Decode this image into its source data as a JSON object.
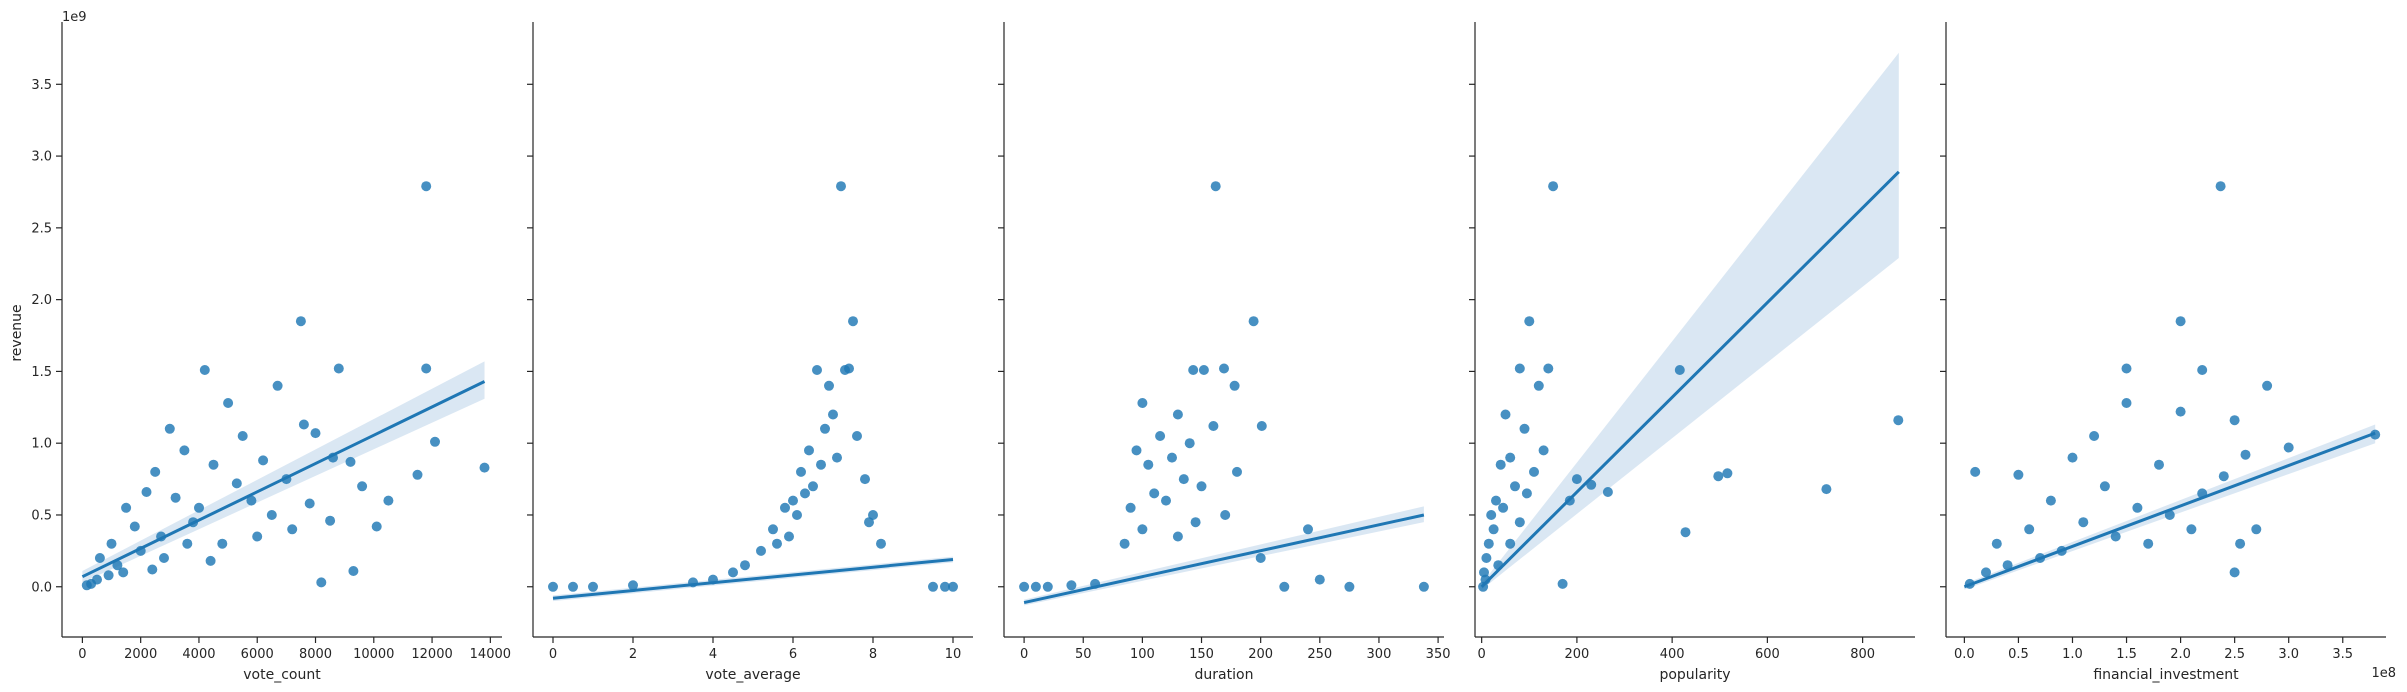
{
  "figure": {
    "ylabel": "revenue",
    "y_offset_label": "1e9",
    "y_scale": 1000000000.0,
    "ylim": [
      -0.35,
      3.92
    ],
    "yticks": [
      0.0,
      0.5,
      1.0,
      1.5,
      2.0,
      2.5,
      3.0,
      3.5
    ],
    "ytick_labels": [
      "0.0",
      "0.5",
      "1.0",
      "1.5",
      "2.0",
      "2.5",
      "3.0",
      "3.5"
    ],
    "colors": {
      "points": "#1f77b4",
      "line": "#1f77b4",
      "band": "#aec9e4",
      "axis": "#262626"
    }
  },
  "chart_data": [
    {
      "type": "scatter",
      "xlabel": "vote_count",
      "xlim": [
        -700,
        14400
      ],
      "xticks": [
        0,
        2000,
        4000,
        6000,
        8000,
        10000,
        12000,
        14000
      ],
      "xtick_labels": [
        "0",
        "2000",
        "4000",
        "6000",
        "8000",
        "10000",
        "12000",
        "14000"
      ],
      "x_offset_label": "",
      "regression": {
        "x": [
          0,
          13800
        ],
        "y": [
          0.07,
          1.43
        ],
        "ci_low": [
          0.03,
          1.31
        ],
        "ci_high": [
          0.11,
          1.57
        ]
      },
      "points": [
        [
          11800,
          2.79
        ],
        [
          7500,
          1.85
        ],
        [
          4200,
          1.51
        ],
        [
          8800,
          1.52
        ],
        [
          11800,
          1.52
        ],
        [
          6700,
          1.4
        ],
        [
          13800,
          0.83
        ],
        [
          12100,
          1.01
        ],
        [
          9600,
          0.7
        ],
        [
          11500,
          0.78
        ],
        [
          8200,
          0.03
        ],
        [
          9300,
          0.11
        ],
        [
          8500,
          0.46
        ],
        [
          10100,
          0.42
        ],
        [
          7600,
          1.13
        ],
        [
          8000,
          1.07
        ],
        [
          5000,
          1.28
        ],
        [
          5500,
          1.05
        ],
        [
          6200,
          0.88
        ],
        [
          3000,
          1.1
        ],
        [
          3500,
          0.95
        ],
        [
          4500,
          0.85
        ],
        [
          7000,
          0.75
        ],
        [
          2500,
          0.8
        ],
        [
          5800,
          0.6
        ],
        [
          6500,
          0.5
        ],
        [
          3800,
          0.45
        ],
        [
          7200,
          0.4
        ],
        [
          4800,
          0.3
        ],
        [
          8600,
          0.9
        ],
        [
          9200,
          0.87
        ],
        [
          2200,
          0.66
        ],
        [
          1500,
          0.55
        ],
        [
          3200,
          0.62
        ],
        [
          6000,
          0.35
        ],
        [
          5300,
          0.72
        ],
        [
          2700,
          0.35
        ],
        [
          4000,
          0.55
        ],
        [
          1000,
          0.3
        ],
        [
          1800,
          0.42
        ],
        [
          7800,
          0.58
        ],
        [
          10500,
          0.6
        ],
        [
          600,
          0.2
        ],
        [
          1200,
          0.15
        ],
        [
          2000,
          0.25
        ],
        [
          2800,
          0.2
        ],
        [
          3600,
          0.3
        ],
        [
          4400,
          0.18
        ],
        [
          500,
          0.05
        ],
        [
          900,
          0.08
        ],
        [
          1400,
          0.1
        ],
        [
          300,
          0.02
        ],
        [
          150,
          0.01
        ],
        [
          2400,
          0.12
        ]
      ]
    },
    {
      "type": "scatter",
      "xlabel": "vote_average",
      "xlim": [
        -0.5,
        10.5
      ],
      "xticks": [
        0,
        2,
        4,
        6,
        8,
        10
      ],
      "xtick_labels": [
        "0",
        "2",
        "4",
        "6",
        "8",
        "10"
      ],
      "x_offset_label": "",
      "regression": {
        "x": [
          0,
          10
        ],
        "y": [
          -0.08,
          0.19
        ],
        "ci_low": [
          -0.1,
          0.17
        ],
        "ci_high": [
          -0.06,
          0.21
        ]
      },
      "points": [
        [
          7.2,
          2.79
        ],
        [
          7.5,
          1.85
        ],
        [
          6.6,
          1.51
        ],
        [
          7.4,
          1.52
        ],
        [
          7.3,
          1.51
        ],
        [
          6.9,
          1.4
        ],
        [
          7.0,
          1.2
        ],
        [
          6.8,
          1.1
        ],
        [
          7.6,
          1.05
        ],
        [
          6.4,
          0.95
        ],
        [
          7.1,
          0.9
        ],
        [
          6.2,
          0.8
        ],
        [
          7.8,
          0.75
        ],
        [
          6.0,
          0.6
        ],
        [
          5.8,
          0.55
        ],
        [
          6.5,
          0.7
        ],
        [
          8.0,
          0.5
        ],
        [
          5.5,
          0.4
        ],
        [
          7.9,
          0.45
        ],
        [
          6.7,
          0.85
        ],
        [
          5.9,
          0.35
        ],
        [
          5.2,
          0.25
        ],
        [
          4.8,
          0.15
        ],
        [
          8.2,
          0.3
        ],
        [
          6.3,
          0.65
        ],
        [
          6.1,
          0.5
        ],
        [
          5.6,
          0.3
        ],
        [
          4.5,
          0.1
        ],
        [
          4.0,
          0.05
        ],
        [
          3.5,
          0.03
        ],
        [
          2.0,
          0.01
        ],
        [
          0.0,
          0.0
        ],
        [
          0.5,
          0.0
        ],
        [
          1.0,
          0.0
        ],
        [
          9.5,
          0.0
        ],
        [
          10.0,
          0.0
        ],
        [
          9.8,
          0.0
        ]
      ]
    },
    {
      "type": "scatter",
      "xlabel": "duration",
      "xlim": [
        -17,
        355
      ],
      "xticks": [
        0,
        50,
        100,
        150,
        200,
        250,
        300,
        350
      ],
      "xtick_labels": [
        "0",
        "50",
        "100",
        "150",
        "200",
        "250",
        "300",
        "350"
      ],
      "x_offset_label": "",
      "regression": {
        "x": [
          0,
          338
        ],
        "y": [
          -0.11,
          0.5
        ],
        "ci_low": [
          -0.13,
          0.45
        ],
        "ci_high": [
          -0.09,
          0.56
        ]
      },
      "points": [
        [
          162,
          2.79
        ],
        [
          194,
          1.85
        ],
        [
          143,
          1.51
        ],
        [
          169,
          1.52
        ],
        [
          152,
          1.51
        ],
        [
          178,
          1.4
        ],
        [
          100,
          1.28
        ],
        [
          130,
          1.2
        ],
        [
          160,
          1.12
        ],
        [
          201,
          1.12
        ],
        [
          115,
          1.05
        ],
        [
          140,
          1.0
        ],
        [
          95,
          0.95
        ],
        [
          125,
          0.9
        ],
        [
          180,
          0.8
        ],
        [
          105,
          0.85
        ],
        [
          135,
          0.75
        ],
        [
          150,
          0.7
        ],
        [
          110,
          0.65
        ],
        [
          120,
          0.6
        ],
        [
          90,
          0.55
        ],
        [
          170,
          0.5
        ],
        [
          145,
          0.45
        ],
        [
          240,
          0.4
        ],
        [
          100,
          0.4
        ],
        [
          130,
          0.35
        ],
        [
          85,
          0.3
        ],
        [
          200,
          0.2
        ],
        [
          250,
          0.05
        ],
        [
          275,
          0.0
        ],
        [
          338,
          0.0
        ],
        [
          0,
          0.0
        ],
        [
          10,
          0.0
        ],
        [
          20,
          0.0
        ],
        [
          40,
          0.01
        ],
        [
          60,
          0.02
        ],
        [
          220,
          0.0
        ]
      ]
    },
    {
      "type": "scatter",
      "xlabel": "popularity",
      "xlim": [
        -14,
        910
      ],
      "xticks": [
        0,
        200,
        400,
        600,
        800
      ],
      "xtick_labels": [
        "0",
        "200",
        "400",
        "600",
        "800"
      ],
      "x_offset_label": "",
      "regression": {
        "x": [
          0,
          876
        ],
        "y": [
          0.0,
          2.89
        ],
        "ci_low": [
          -0.02,
          2.29
        ],
        "ci_high": [
          0.02,
          3.72
        ]
      },
      "points": [
        [
          150,
          2.79
        ],
        [
          100,
          1.85
        ],
        [
          416,
          1.51
        ],
        [
          80,
          1.52
        ],
        [
          140,
          1.52
        ],
        [
          120,
          1.4
        ],
        [
          875,
          1.16
        ],
        [
          497,
          0.77
        ],
        [
          516,
          0.79
        ],
        [
          724,
          0.68
        ],
        [
          428,
          0.38
        ],
        [
          265,
          0.66
        ],
        [
          230,
          0.71
        ],
        [
          200,
          0.75
        ],
        [
          185,
          0.6
        ],
        [
          170,
          0.02
        ],
        [
          90,
          1.1
        ],
        [
          60,
          0.9
        ],
        [
          50,
          1.2
        ],
        [
          40,
          0.85
        ],
        [
          70,
          0.7
        ],
        [
          110,
          0.8
        ],
        [
          30,
          0.6
        ],
        [
          20,
          0.5
        ],
        [
          15,
          0.3
        ],
        [
          10,
          0.2
        ],
        [
          5,
          0.1
        ],
        [
          25,
          0.4
        ],
        [
          45,
          0.55
        ],
        [
          130,
          0.95
        ],
        [
          80,
          0.45
        ],
        [
          35,
          0.15
        ],
        [
          3,
          0.0
        ],
        [
          8,
          0.05
        ],
        [
          60,
          0.3
        ],
        [
          95,
          0.65
        ]
      ]
    },
    {
      "type": "scatter",
      "xlabel": "financial_investment",
      "xlim": [
        -0.17,
        3.9
      ],
      "xticks": [
        0.0,
        0.5,
        1.0,
        1.5,
        2.0,
        2.5,
        3.0,
        3.5
      ],
      "xtick_labels": [
        "0.0",
        "0.5",
        "1.0",
        "1.5",
        "2.0",
        "2.5",
        "3.0",
        "3.5"
      ],
      "x_offset_label": "1e8",
      "regression": {
        "x": [
          0.0,
          3.8
        ],
        "y": [
          0.0,
          1.07
        ],
        "ci_low": [
          -0.02,
          1.0
        ],
        "ci_high": [
          0.02,
          1.13
        ]
      },
      "points": [
        [
          2.37,
          2.79
        ],
        [
          2.0,
          1.85
        ],
        [
          2.2,
          1.51
        ],
        [
          1.5,
          1.52
        ],
        [
          2.0,
          1.22
        ],
        [
          2.5,
          1.16
        ],
        [
          2.8,
          1.4
        ],
        [
          3.8,
          1.06
        ],
        [
          2.6,
          0.92
        ],
        [
          2.4,
          0.77
        ],
        [
          1.5,
          1.28
        ],
        [
          1.2,
          1.05
        ],
        [
          3.0,
          0.97
        ],
        [
          2.7,
          0.4
        ],
        [
          2.55,
          0.3
        ],
        [
          2.5,
          0.1
        ],
        [
          0.5,
          0.78
        ],
        [
          0.1,
          0.8
        ],
        [
          1.0,
          0.9
        ],
        [
          1.8,
          0.85
        ],
        [
          1.3,
          0.7
        ],
        [
          0.8,
          0.6
        ],
        [
          1.6,
          0.55
        ],
        [
          2.2,
          0.65
        ],
        [
          0.6,
          0.4
        ],
        [
          1.1,
          0.45
        ],
        [
          0.3,
          0.3
        ],
        [
          1.4,
          0.35
        ],
        [
          0.9,
          0.25
        ],
        [
          1.9,
          0.5
        ],
        [
          0.2,
          0.1
        ],
        [
          0.05,
          0.02
        ],
        [
          0.4,
          0.15
        ],
        [
          1.7,
          0.3
        ],
        [
          2.1,
          0.4
        ],
        [
          0.7,
          0.2
        ]
      ]
    }
  ]
}
